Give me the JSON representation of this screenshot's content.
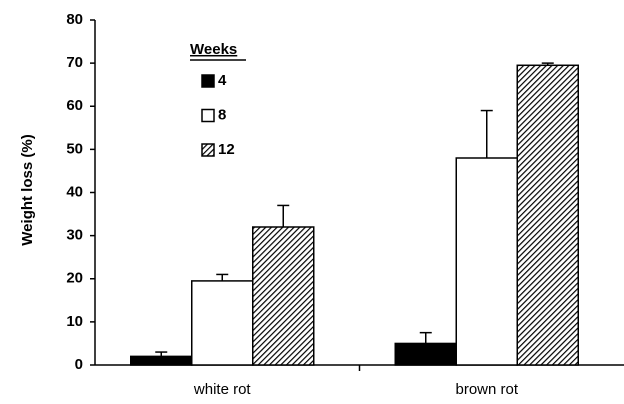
{
  "chart_data": {
    "type": "bar",
    "y_label": "Weight loss (%)",
    "legend_title": "Weeks",
    "categories": [
      "white rot",
      "brown rot"
    ],
    "series": [
      {
        "name": "4",
        "color": "#000000",
        "values": [
          2,
          5
        ],
        "errors": [
          1,
          2.5
        ]
      },
      {
        "name": "8",
        "color": "#ffffff",
        "values": [
          19.5,
          48
        ],
        "errors": [
          1.5,
          11
        ]
      },
      {
        "name": "12",
        "color": "#000000",
        "pattern": "hatch",
        "values": [
          32,
          69.5
        ],
        "errors": [
          5,
          0.5
        ]
      }
    ],
    "ylim": [
      0,
      80
    ],
    "yticks": [
      0,
      10,
      20,
      30,
      40,
      50,
      60,
      70,
      80
    ],
    "legend": "upper left"
  }
}
